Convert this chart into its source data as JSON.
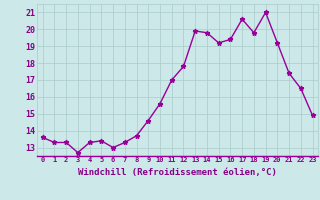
{
  "x": [
    0,
    1,
    2,
    3,
    4,
    5,
    6,
    7,
    8,
    9,
    10,
    11,
    12,
    13,
    14,
    15,
    16,
    17,
    18,
    19,
    20,
    21,
    22,
    23
  ],
  "y": [
    13.6,
    13.3,
    13.3,
    12.7,
    13.3,
    13.4,
    13.0,
    13.3,
    13.7,
    14.6,
    15.6,
    17.0,
    17.8,
    19.9,
    19.8,
    19.2,
    19.4,
    20.6,
    19.8,
    21.0,
    19.2,
    17.4,
    16.5,
    14.9
  ],
  "line_color": "#990099",
  "marker": "*",
  "marker_size": 3.5,
  "bg_color": "#cce8e8",
  "grid_color": "#aacccc",
  "xlabel": "Windchill (Refroidissement éolien,°C)",
  "xlabel_color": "#880088",
  "ylabel_ticks": [
    13,
    14,
    15,
    16,
    17,
    18,
    19,
    20,
    21
  ],
  "tick_color": "#880088",
  "ylim": [
    12.5,
    21.5
  ],
  "xlim": [
    -0.5,
    23.5
  ],
  "line_width": 1.0,
  "spine_color": "#888888",
  "bottom_bar_color": "#8833aa"
}
